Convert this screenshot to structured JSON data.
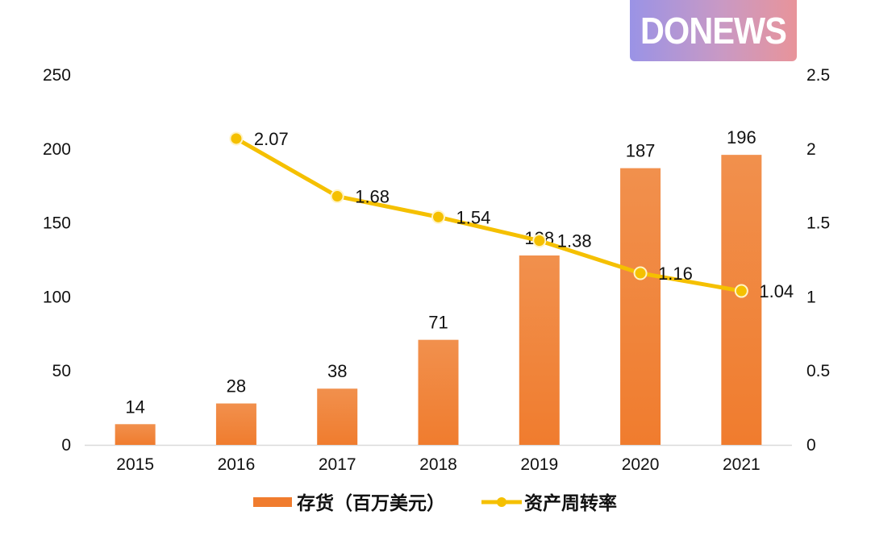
{
  "logo": {
    "text": "DONEWS"
  },
  "colors": {
    "bar": "#f07c2e",
    "bar_light": "#f1904d",
    "line": "#f5c000",
    "axis": "#d9d9d9"
  },
  "chart_data": {
    "type": "bar",
    "title": "",
    "xlabel": "",
    "ylabel": "",
    "categories": [
      "2015",
      "2016",
      "2017",
      "2018",
      "2019",
      "2020",
      "2021"
    ],
    "series": [
      {
        "name": "存货（百万美元）",
        "type": "bar",
        "axis": "left",
        "values": [
          14,
          28,
          38,
          71,
          128,
          187,
          196
        ],
        "labels": [
          "14",
          "28",
          "38",
          "71",
          "128",
          "187",
          "196"
        ]
      },
      {
        "name": "资产周转率",
        "type": "line",
        "axis": "right",
        "values": [
          null,
          2.07,
          1.68,
          1.54,
          1.38,
          1.16,
          1.04
        ],
        "labels": [
          "",
          "2.07",
          "1.68",
          "1.54",
          "1.38",
          "1.16",
          "1.04"
        ]
      }
    ],
    "ylim": [
      0,
      250
    ],
    "yticks": [
      "0",
      "50",
      "100",
      "150",
      "200",
      "250"
    ],
    "y2lim": [
      0,
      2.5
    ],
    "y2ticks": [
      "0",
      "0.5",
      "1",
      "1.5",
      "2",
      "2.5"
    ],
    "grid": false,
    "legend": "bottom-center"
  }
}
